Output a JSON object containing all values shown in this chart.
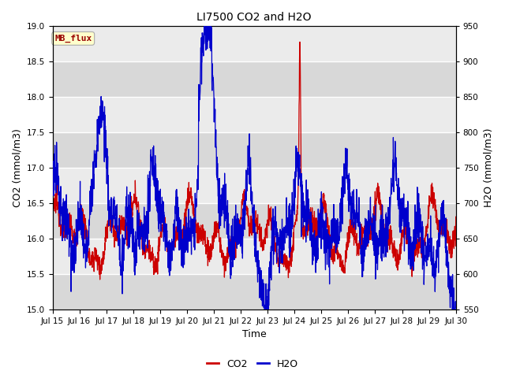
{
  "title": "LI7500 CO2 and H2O",
  "xlabel": "Time",
  "ylabel_left": "CO2 (mmol/m3)",
  "ylabel_right": "H2O (mmol/m3)",
  "co2_ylim": [
    15.0,
    19.0
  ],
  "h2o_ylim": [
    550,
    950
  ],
  "co2_color": "#cc0000",
  "h2o_color": "#0000cc",
  "background_color": "#e0e0e0",
  "band_color_light": "#ebebeb",
  "band_color_dark": "#d8d8d8",
  "annotation_text": "MB_flux",
  "annotation_bg": "#ffffcc",
  "annotation_border": "#aaaaaa",
  "annotation_text_color": "#990000",
  "x_tick_labels": [
    "Jul 15",
    "Jul 16",
    "Jul 17",
    "Jul 18",
    "Jul 19",
    "Jul 20",
    "Jul 21",
    "Jul 22",
    "Jul 23",
    "Jul 24",
    "Jul 25",
    "Jul 26",
    "Jul 27",
    "Jul 28",
    "Jul 29",
    "Jul 30"
  ],
  "n_points": 2000,
  "title_fontsize": 10,
  "axis_label_fontsize": 9,
  "tick_fontsize": 7.5,
  "legend_fontsize": 9,
  "co2_yticks": [
    15.0,
    15.5,
    16.0,
    16.5,
    17.0,
    17.5,
    18.0,
    18.5,
    19.0
  ],
  "h2o_yticks": [
    550,
    600,
    650,
    700,
    750,
    800,
    850,
    900,
    950
  ]
}
